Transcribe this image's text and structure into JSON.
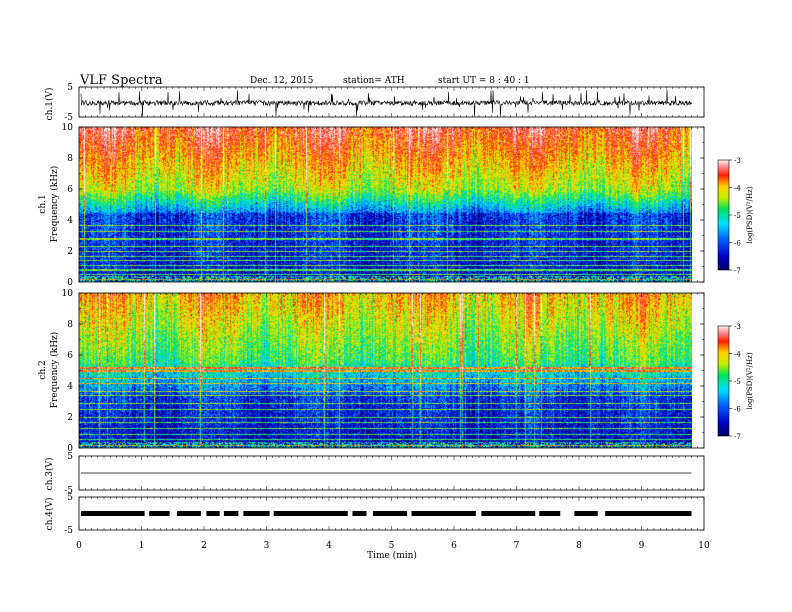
{
  "header": {
    "title": "VLF  Spectra",
    "date": "Dec. 12, 2015",
    "station": "station= ATH",
    "start": "start  UT  =   8  : 40 : 1"
  },
  "chart_data": [
    {
      "type": "line",
      "name": "ch1-waveform",
      "ylabel": "ch.1(V)",
      "ylim": [
        -5,
        5
      ],
      "yticks": [
        "5",
        "-5"
      ]
    },
    {
      "type": "heatmap",
      "name": "ch1-spectrogram",
      "ylabel_channel": "ch.1",
      "ylabel": "Frequency  (kHz)",
      "ylim": [
        0,
        10
      ],
      "yticks": [
        "0",
        "2",
        "4",
        "6",
        "8",
        "10"
      ],
      "colorbar": {
        "label": "log(PSD)(V²/Hz)",
        "ticks": [
          "-3",
          "-4",
          "-5",
          "-6",
          "-7"
        ],
        "range": [
          -7,
          -3
        ]
      }
    },
    {
      "type": "heatmap",
      "name": "ch2-spectrogram",
      "ylabel_channel": "ch.2",
      "ylabel": "Frequency  (kHz)",
      "ylim": [
        0,
        10
      ],
      "yticks": [
        "0",
        "2",
        "4",
        "6",
        "8",
        "10"
      ],
      "colorbar": {
        "label": "log(PSD)(V²/Hz)",
        "ticks": [
          "-3",
          "-4",
          "-5",
          "-6",
          "-7"
        ],
        "range": [
          -7,
          -3
        ]
      }
    },
    {
      "type": "line",
      "name": "ch3-waveform",
      "ylabel": "ch.3(V)",
      "ylim": [
        -5,
        5
      ],
      "yticks": [
        "5",
        "-5"
      ]
    },
    {
      "type": "line",
      "name": "ch4-waveform",
      "ylabel": "ch.4(V)",
      "ylim": [
        -5,
        5
      ],
      "yticks": [
        "5",
        "-5"
      ]
    }
  ],
  "xaxis": {
    "label": "Time  (min)",
    "xlim": [
      0,
      10
    ],
    "ticks": [
      "0",
      "1",
      "2",
      "3",
      "4",
      "5",
      "6",
      "7",
      "8",
      "9",
      "10"
    ],
    "data_end": 9.8
  }
}
